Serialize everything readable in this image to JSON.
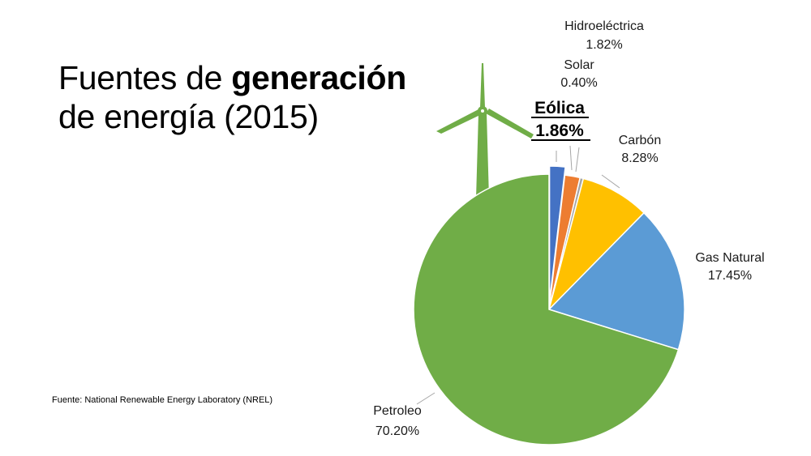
{
  "title": {
    "line1_normal": "Fuentes de ",
    "line1_bold": "generación",
    "line2": "de energía (2015)"
  },
  "source": "Fuente: National Renewable Energy Laboratory (NREL)",
  "chart_data": {
    "type": "pie",
    "slices": [
      {
        "name": "Eólica",
        "value_label": "1.86%",
        "value": 1.86,
        "color": "#4472c4",
        "highlight": true
      },
      {
        "name": "Hidroeléctrica",
        "value_label": "1.82%",
        "value": 1.82,
        "color": "#ed7d31",
        "highlight": false
      },
      {
        "name": "Solar",
        "value_label": "0.40%",
        "value": 0.4,
        "color": "#c00000",
        "highlight": false
      },
      {
        "name": "Carbón",
        "value_label": "8.28%",
        "value": 8.28,
        "color": "#a5a5a5",
        "highlight": false
      },
      {
        "name": "Gas Natural",
        "value_label": "17.45%",
        "value": 17.45,
        "color": "#ffc000",
        "highlight": false
      },
      {
        "name": "Petroleo",
        "value_label": "70.20%",
        "value": 70.2,
        "color": "#5b9bd5",
        "highlight": false
      }
    ],
    "fill_order_colors": [
      "#4472c4",
      "#ed7d31",
      "#c00000",
      "#a5a5a5",
      "#ffc000",
      "#5b9bd5",
      "#70ad47"
    ],
    "turbine_color": "#70ad47"
  }
}
